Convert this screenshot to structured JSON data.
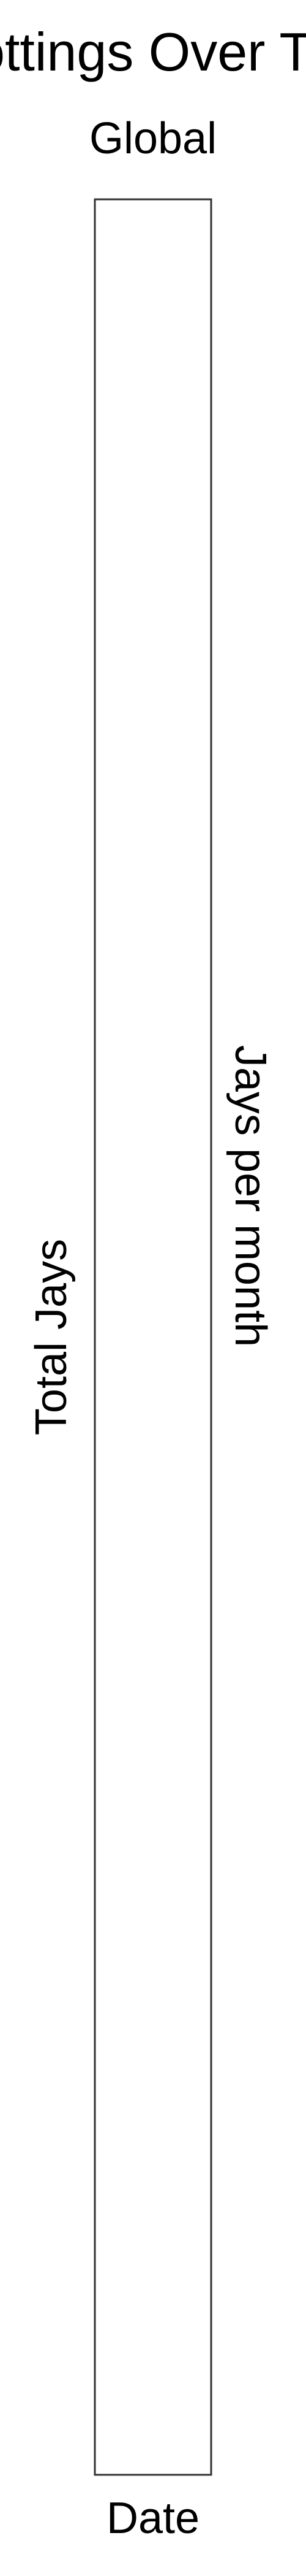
{
  "chart_data": {
    "type": "line",
    "title": "Spottings Over Time",
    "subtitle": "Global",
    "xlabel": "Date",
    "ylabel": "Total Jays",
    "y2label": "Jays per month",
    "x": [],
    "series": [],
    "grid": false,
    "legend": "none"
  }
}
